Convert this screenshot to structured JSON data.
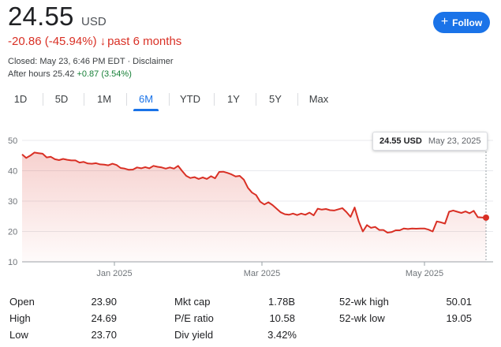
{
  "header": {
    "price": "24.55",
    "currency": "USD",
    "change": "-20.86 (-45.94%)",
    "change_arrow": "↓",
    "change_period": "past 6 months",
    "closed": "Closed: May 23, 6:46 PM EDT",
    "separator": "·",
    "disclaimer": "Disclaimer",
    "after_hours_label": "After hours 25.42",
    "after_hours_change": "+0.87 (3.54%)",
    "follow_plus": "+",
    "follow_label": "Follow",
    "accent_color": "#1a73e8",
    "negative_color": "#d93025",
    "positive_color": "#188038"
  },
  "tabs": [
    {
      "label": "1D",
      "active": false
    },
    {
      "label": "5D",
      "active": false
    },
    {
      "label": "1M",
      "active": false
    },
    {
      "label": "6M",
      "active": true
    },
    {
      "label": "YTD",
      "active": false
    },
    {
      "label": "1Y",
      "active": false
    },
    {
      "label": "5Y",
      "active": false
    },
    {
      "label": "Max",
      "active": false
    }
  ],
  "tooltip": {
    "value": "24.55 USD",
    "date": "May 23, 2025"
  },
  "chart_data": {
    "type": "area",
    "line_color": "#d93025",
    "ylim": [
      10,
      50
    ],
    "yticks": [
      "50",
      "40",
      "30",
      "20",
      "10"
    ],
    "xlabels": [
      "Jan 2025",
      "Mar 2025",
      "May 2025"
    ],
    "grid": true,
    "values": [
      45.4,
      44.2,
      45.0,
      46.0,
      45.8,
      45.6,
      44.4,
      44.6,
      43.8,
      43.5,
      43.9,
      43.6,
      43.4,
      43.4,
      42.7,
      42.9,
      42.4,
      42.3,
      42.5,
      42.1,
      42.0,
      41.8,
      42.3,
      41.9,
      40.9,
      40.7,
      40.3,
      40.4,
      41.1,
      40.8,
      41.2,
      40.8,
      41.6,
      41.3,
      41.1,
      40.7,
      41.1,
      40.7,
      41.6,
      39.9,
      38.3,
      37.6,
      37.9,
      37.3,
      37.8,
      37.3,
      38.2,
      37.5,
      39.6,
      39.7,
      39.3,
      38.8,
      38.1,
      38.3,
      37.1,
      34.4,
      32.8,
      32.0,
      29.8,
      28.9,
      29.6,
      28.7,
      27.5,
      26.3,
      25.7,
      25.5,
      25.9,
      25.4,
      25.9,
      25.5,
      26.2,
      25.3,
      27.5,
      27.2,
      27.4,
      27.0,
      26.9,
      27.3,
      27.7,
      26.4,
      24.8,
      27.9,
      23.3,
      20.0,
      22.1,
      21.2,
      21.5,
      20.5,
      20.5,
      19.6,
      19.8,
      20.4,
      20.4,
      21.0,
      20.8,
      21.0,
      20.9,
      21.0,
      21.0,
      20.6,
      20.0,
      23.3,
      23.0,
      22.6,
      26.5,
      26.9,
      26.5,
      26.1,
      26.6,
      26.0,
      26.8,
      24.7,
      24.6,
      24.55
    ]
  },
  "stats": {
    "col1": [
      {
        "label": "Open",
        "value": "23.90"
      },
      {
        "label": "High",
        "value": "24.69"
      },
      {
        "label": "Low",
        "value": "23.70"
      }
    ],
    "col2": [
      {
        "label": "Mkt cap",
        "value": "1.78B"
      },
      {
        "label": "P/E ratio",
        "value": "10.58"
      },
      {
        "label": "Div yield",
        "value": "3.42%"
      }
    ],
    "col3": [
      {
        "label": "52-wk high",
        "value": "50.01"
      },
      {
        "label": "52-wk low",
        "value": "19.05"
      }
    ]
  }
}
